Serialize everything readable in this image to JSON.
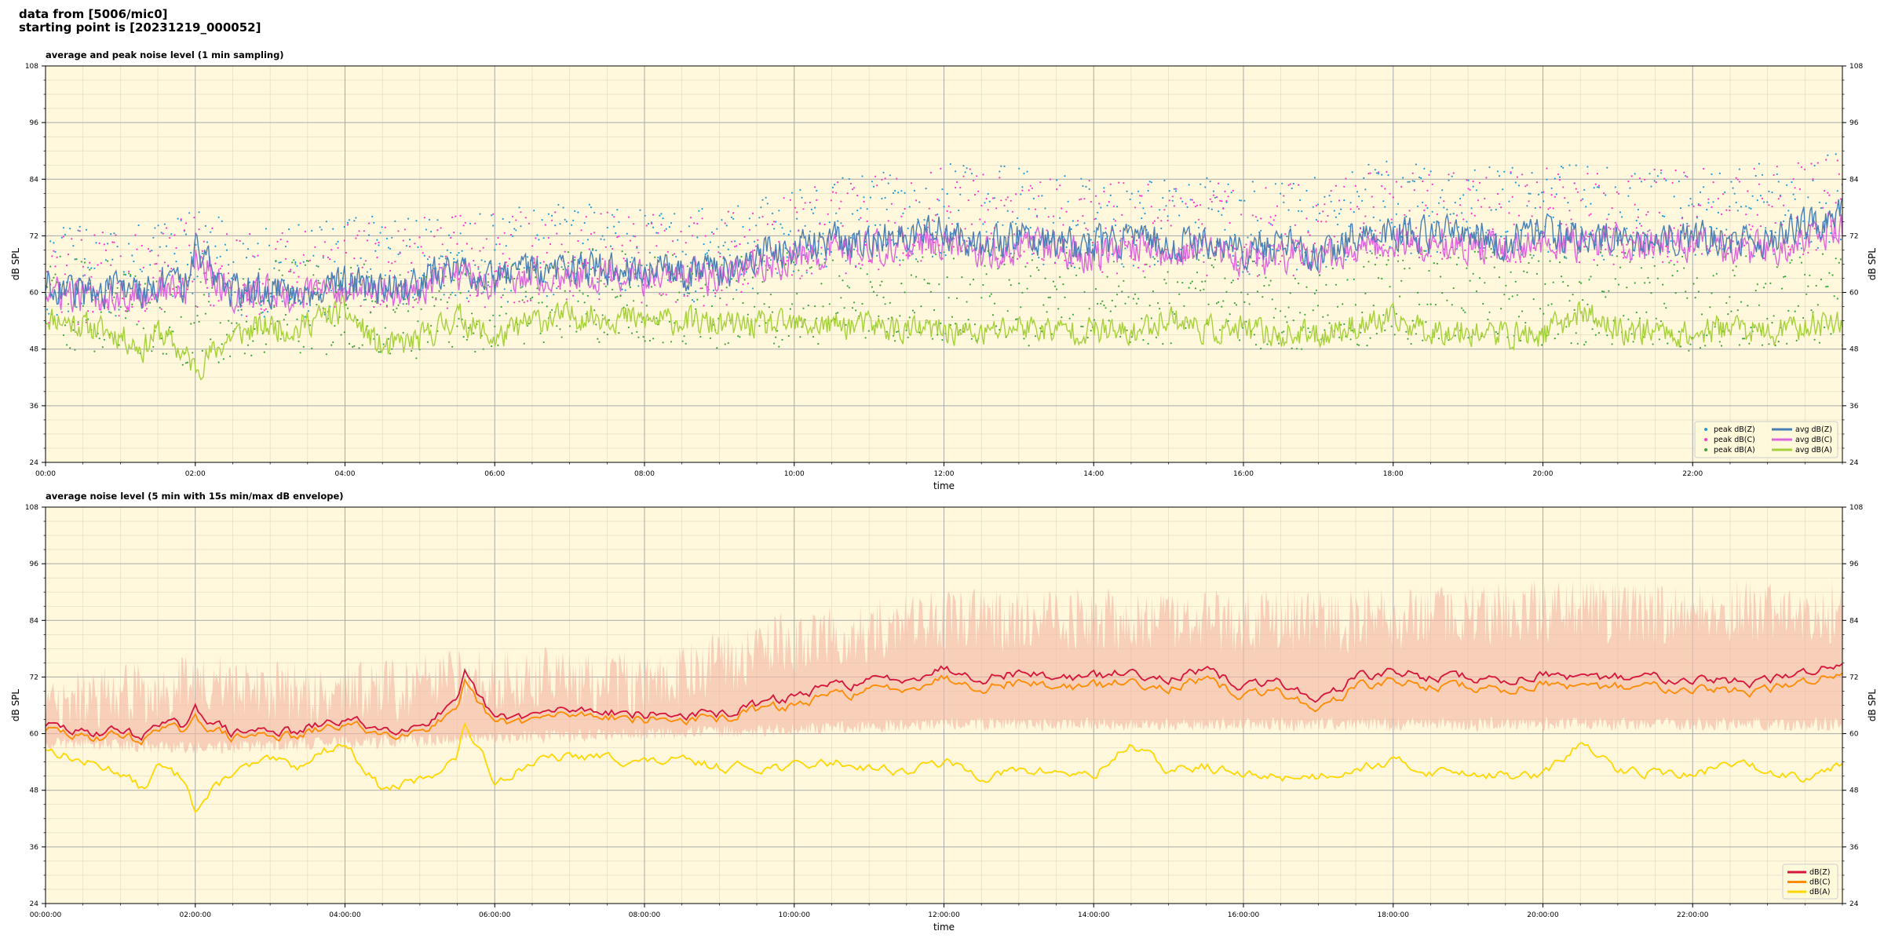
{
  "header": {
    "line1": "data from [5006/mic0]",
    "line2": "starting point is [20231219_000052]"
  },
  "colors": {
    "plot_bg": "#fff8dc",
    "peak_z": "#1f9bd6",
    "peak_c": "#ff33cc",
    "peak_a": "#3aa63a",
    "avg_z": "#4a7fb5",
    "avg_c": "#dd66dd",
    "avg_a": "#a6d13c",
    "dbz": "#d6143c",
    "dbc": "#ff8c00",
    "dba": "#ffd700",
    "envelope": "#f5b8a6"
  },
  "chart_data": [
    {
      "type": "line",
      "title": "average and peak noise level (1 min sampling)",
      "xlabel": "time",
      "ylabel": "dB SPL",
      "ylim": [
        24,
        108
      ],
      "y_ticks": [
        "24",
        "36",
        "48",
        "60",
        "72",
        "84",
        "96",
        "108"
      ],
      "x_ticks": [
        "00:00",
        "02:00",
        "04:00",
        "06:00",
        "08:00",
        "10:00",
        "12:00",
        "14:00",
        "16:00",
        "18:00",
        "20:00",
        "22:00"
      ],
      "x_unit": "hours",
      "xlim": [
        0,
        24
      ],
      "grid": true,
      "legend_position": "lower-right",
      "legend": [
        "peak dB(Z)",
        "peak dB(C)",
        "peak dB(A)",
        "avg dB(Z)",
        "avg dB(C)",
        "avg dB(A)"
      ],
      "series": [
        {
          "name": "avg dB(Z)",
          "x": [
            0,
            0.5,
            1,
            1.3,
            1.5,
            1.9,
            2,
            2.5,
            3,
            3.4,
            3.5,
            4,
            4.5,
            5,
            5.5,
            6,
            6.5,
            7,
            7.5,
            8,
            8.5,
            9,
            9.5,
            10,
            10.5,
            11,
            11.5,
            12,
            12.5,
            13,
            13.5,
            14,
            14.5,
            15,
            15.5,
            16,
            16.5,
            17,
            17.5,
            18,
            18.5,
            19,
            19.5,
            20,
            20.5,
            21,
            21.5,
            22,
            22.5,
            23,
            23.5,
            24
          ],
          "values": [
            62,
            60,
            61,
            60,
            62,
            61,
            70,
            60,
            61,
            60,
            61,
            62,
            61,
            62,
            66,
            63,
            65,
            65,
            65,
            64,
            64,
            64,
            68,
            69,
            71,
            71,
            72,
            73,
            70,
            72,
            71,
            70,
            72,
            70,
            71,
            69,
            70,
            68,
            72,
            73,
            72,
            72,
            71,
            73,
            72,
            72,
            72,
            72,
            71,
            71,
            74,
            76
          ]
        },
        {
          "name": "avg dB(C)",
          "x": [
            0,
            0.5,
            1,
            1.3,
            1.5,
            1.9,
            2,
            2.5,
            3,
            3.4,
            3.5,
            4,
            4.5,
            5,
            5.5,
            6,
            6.5,
            7,
            7.5,
            8,
            8.5,
            9,
            9.5,
            10,
            10.5,
            11,
            11.5,
            12,
            12.5,
            13,
            13.5,
            14,
            14.5,
            15,
            15.5,
            16,
            16.5,
            17,
            17.5,
            18,
            18.5,
            19,
            19.5,
            20,
            20.5,
            21,
            21.5,
            22,
            22.5,
            23,
            23.5,
            24
          ],
          "values": [
            60,
            59,
            60,
            59,
            61,
            60,
            68,
            59,
            60,
            59,
            60,
            61,
            60,
            60,
            64,
            62,
            64,
            64,
            64,
            63,
            63,
            63,
            66,
            67,
            69,
            69,
            70,
            71,
            68,
            70,
            69,
            68,
            70,
            68,
            69,
            67,
            68,
            66,
            70,
            71,
            70,
            70,
            69,
            71,
            70,
            70,
            70,
            70,
            69,
            69,
            72,
            74
          ]
        },
        {
          "name": "avg dB(A)",
          "x": [
            0,
            0.5,
            1,
            1.3,
            1.5,
            1.9,
            2,
            2.5,
            3,
            3.4,
            3.5,
            4,
            4.5,
            5,
            5.5,
            6,
            6.5,
            7,
            7.5,
            8,
            8.5,
            9,
            9.5,
            10,
            10.5,
            11,
            11.5,
            12,
            12.5,
            13,
            13.5,
            14,
            14.5,
            15,
            15.5,
            16,
            16.5,
            17,
            17.5,
            18,
            18.5,
            19,
            19.5,
            20,
            20.5,
            21,
            21.5,
            22,
            22.5,
            23,
            23.5,
            24
          ],
          "values": [
            55,
            53,
            51,
            48,
            52,
            46,
            44,
            51,
            53,
            52,
            54,
            56,
            48,
            50,
            55,
            50,
            54,
            55,
            55,
            54,
            54,
            53,
            53,
            53,
            53,
            53,
            52,
            52,
            51,
            53,
            52,
            52,
            51,
            55,
            52,
            52,
            51,
            51,
            53,
            54,
            52,
            52,
            51,
            51,
            56,
            52,
            52,
            51,
            53,
            51,
            53,
            54
          ]
        },
        {
          "name": "peak dB(Z)",
          "x": [
            0,
            1,
            2,
            3,
            4,
            5,
            6,
            7,
            8,
            9,
            10,
            11,
            12,
            13,
            14,
            15,
            16,
            17,
            18,
            19,
            20,
            21,
            22,
            23,
            24
          ],
          "values": [
            63,
            62,
            66,
            62,
            64,
            66,
            66,
            68,
            67,
            66,
            72,
            74,
            76,
            75,
            73,
            74,
            72,
            73,
            77,
            75,
            76,
            75,
            76,
            76,
            78
          ]
        },
        {
          "name": "peak dB(C)",
          "x": [
            0,
            1,
            2,
            3,
            4,
            5,
            6,
            7,
            8,
            9,
            10,
            11,
            12,
            13,
            14,
            15,
            16,
            17,
            18,
            19,
            20,
            21,
            22,
            23,
            24
          ],
          "values": [
            62,
            61,
            65,
            61,
            63,
            65,
            65,
            67,
            66,
            65,
            71,
            73,
            75,
            74,
            72,
            73,
            71,
            72,
            76,
            74,
            75,
            74,
            75,
            75,
            77
          ]
        },
        {
          "name": "peak dB(A)",
          "x": [
            0,
            1,
            2,
            3,
            4,
            5,
            6,
            7,
            8,
            9,
            10,
            11,
            12,
            13,
            14,
            15,
            16,
            17,
            18,
            19,
            20,
            21,
            22,
            23,
            24
          ],
          "values": [
            57,
            55,
            52,
            56,
            55,
            54,
            56,
            58,
            57,
            56,
            57,
            58,
            58,
            57,
            58,
            57,
            56,
            56,
            57,
            58,
            57,
            57,
            56,
            57,
            57
          ]
        }
      ]
    },
    {
      "type": "line",
      "title": "average noise level (5 min with 15s min/max dB envelope)",
      "xlabel": "time",
      "ylabel": "dB SPL",
      "ylim": [
        24,
        108
      ],
      "y_ticks": [
        "24",
        "36",
        "48",
        "60",
        "72",
        "84",
        "96",
        "108"
      ],
      "x_ticks": [
        "00:00:00",
        "02:00:00",
        "04:00:00",
        "06:00:00",
        "08:00:00",
        "10:00:00",
        "12:00:00",
        "14:00:00",
        "16:00:00",
        "18:00:00",
        "20:00:00",
        "22:00:00"
      ],
      "x_unit": "hours",
      "xlim": [
        0,
        24
      ],
      "grid": true,
      "legend_position": "lower-right",
      "legend": [
        "dB(Z)",
        "dB(C)",
        "dB(A)"
      ],
      "series": [
        {
          "name": "dB(Z)",
          "x": [
            0,
            0.5,
            1,
            1.3,
            1.5,
            1.9,
            2,
            2.5,
            3,
            3.4,
            3.5,
            4,
            4.5,
            5,
            5.5,
            5.6,
            6,
            6.5,
            7,
            7.5,
            8,
            8.5,
            9,
            9.5,
            10,
            10.5,
            11,
            11.5,
            12,
            12.5,
            13,
            13.5,
            14,
            14.5,
            15,
            15.5,
            16,
            16.5,
            17,
            17.5,
            18,
            18.5,
            19,
            19.5,
            20,
            20.5,
            21,
            21.5,
            22,
            22.5,
            23,
            23.5,
            24
          ],
          "values": [
            62,
            60,
            61,
            59,
            63,
            61,
            65,
            60,
            61,
            60,
            61,
            63,
            61,
            62,
            66,
            72,
            63,
            64,
            65,
            65,
            64,
            64,
            64,
            66,
            68,
            70,
            71,
            72,
            74,
            72,
            73,
            72,
            72,
            73,
            72,
            73,
            70,
            71,
            67,
            72,
            73,
            72,
            72,
            71,
            73,
            71,
            72,
            72,
            72,
            71,
            71,
            73,
            75
          ]
        },
        {
          "name": "dB(C)",
          "x": [
            0,
            0.5,
            1,
            1.3,
            1.5,
            1.9,
            2,
            2.5,
            3,
            3.4,
            3.5,
            4,
            4.5,
            5,
            5.5,
            5.6,
            6,
            6.5,
            7,
            7.5,
            8,
            8.5,
            9,
            9.5,
            10,
            10.5,
            11,
            11.5,
            12,
            12.5,
            13,
            13.5,
            14,
            14.5,
            15,
            15.5,
            16,
            16.5,
            17,
            17.5,
            18,
            18.5,
            19,
            19.5,
            20,
            20.5,
            21,
            21.5,
            22,
            22.5,
            23,
            23.5,
            24
          ],
          "values": [
            61,
            59,
            60,
            58,
            62,
            60,
            63,
            59,
            60,
            59,
            60,
            62,
            60,
            61,
            64,
            70,
            62,
            63,
            64,
            64,
            63,
            63,
            63,
            65,
            66,
            68,
            69,
            70,
            72,
            70,
            71,
            70,
            70,
            71,
            70,
            71,
            68,
            69,
            65,
            70,
            71,
            70,
            70,
            69,
            71,
            69,
            70,
            70,
            70,
            69,
            69,
            71,
            73
          ]
        },
        {
          "name": "dB(A)",
          "x": [
            0,
            0.5,
            1,
            1.3,
            1.5,
            1.9,
            2,
            2.5,
            3,
            3.4,
            3.5,
            4,
            4.5,
            5,
            5.5,
            5.6,
            6,
            6.5,
            7,
            7.5,
            8,
            8.5,
            9,
            9.5,
            10,
            10.5,
            11,
            11.5,
            12,
            12.5,
            13,
            13.5,
            14,
            14.5,
            15,
            15.5,
            16,
            16.5,
            17,
            17.5,
            18,
            18.5,
            19,
            19.5,
            20,
            20.5,
            21,
            21.5,
            22,
            22.5,
            23,
            23.5,
            24
          ],
          "values": [
            57,
            54,
            52,
            48,
            53,
            50,
            44,
            52,
            54,
            53,
            55,
            58,
            48,
            50,
            55,
            62,
            50,
            54,
            55,
            55,
            54,
            54,
            53,
            53,
            53,
            54,
            53,
            52,
            54,
            51,
            52,
            52,
            51,
            58,
            52,
            53,
            51,
            51,
            51,
            53,
            54,
            52,
            52,
            51,
            51,
            58,
            52,
            52,
            51,
            54,
            52,
            51,
            54
          ]
        },
        {
          "name": "envelope max",
          "x": [
            0,
            2,
            4,
            6,
            8,
            10,
            12,
            14,
            16,
            18,
            20,
            22,
            24
          ],
          "values": [
            66,
            70,
            68,
            72,
            70,
            80,
            84,
            84,
            84,
            84,
            86,
            86,
            86
          ]
        },
        {
          "name": "envelope min",
          "x": [
            0,
            2,
            4,
            6,
            8,
            10,
            12,
            14,
            16,
            18,
            20,
            22,
            24
          ],
          "values": [
            58,
            57,
            58,
            59,
            60,
            61,
            62,
            62,
            62,
            62,
            62,
            62,
            62
          ]
        }
      ]
    }
  ]
}
